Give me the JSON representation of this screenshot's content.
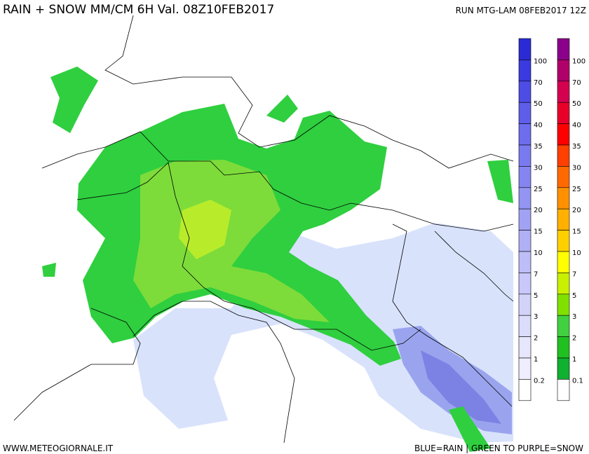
{
  "header": {
    "title": "RAIN + SNOW MM/CM 6H Val. 08Z10FEB2017",
    "run": "RUN MTG-LAM 08FEB2017 12Z"
  },
  "footer": {
    "site": "WWW.METEOGIORNALE.IT",
    "legend_note": "BLUE=RAIN | GREEN TO PURPLE=SNOW"
  },
  "rain_scale": {
    "labels": [
      "100",
      "70",
      "50",
      "40",
      "35",
      "30",
      "25",
      "20",
      "15",
      "10",
      "7",
      "5",
      "3",
      "2",
      "1",
      "0.2"
    ],
    "colors": [
      "#2b2bd6",
      "#3a3ae0",
      "#4d4de6",
      "#5e5eea",
      "#6d6dee",
      "#7a7af0",
      "#8585f2",
      "#9494f2",
      "#a2a2f4",
      "#b0b0f6",
      "#bdbdf8",
      "#c8c8fa",
      "#d3d3fa",
      "#dcdcfc",
      "#e6e6fd",
      "#eeeefe",
      "#ffffff"
    ]
  },
  "snow_scale": {
    "labels": [
      "100",
      "70",
      "50",
      "40",
      "35",
      "30",
      "25",
      "20",
      "15",
      "10",
      "7",
      "5",
      "3",
      "2",
      "1",
      "0.1"
    ],
    "colors": [
      "#8b008b",
      "#b0006a",
      "#d40050",
      "#e8002a",
      "#ff0000",
      "#ff4000",
      "#ff6a00",
      "#ff9000",
      "#ffb000",
      "#ffd000",
      "#ffff00",
      "#c8f000",
      "#80e000",
      "#40d040",
      "#20c020",
      "#10b030",
      "#ffffff"
    ]
  }
}
